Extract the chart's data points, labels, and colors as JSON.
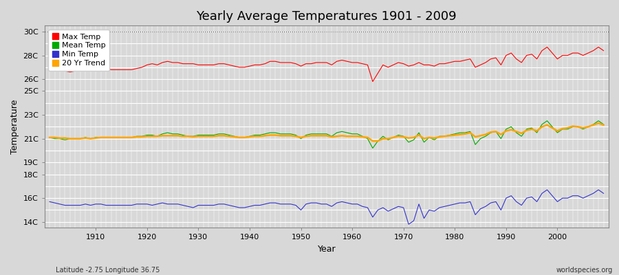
{
  "title": "Yearly Average Temperatures 1901 - 2009",
  "xlabel": "Year",
  "ylabel": "Temperature",
  "bottom_left": "Latitude -2.75 Longitude 36.75",
  "bottom_right": "worldspecies.org",
  "years": [
    1901,
    1902,
    1903,
    1904,
    1905,
    1906,
    1907,
    1908,
    1909,
    1910,
    1911,
    1912,
    1913,
    1914,
    1915,
    1916,
    1917,
    1918,
    1919,
    1920,
    1921,
    1922,
    1923,
    1924,
    1925,
    1926,
    1927,
    1928,
    1929,
    1930,
    1931,
    1932,
    1933,
    1934,
    1935,
    1936,
    1937,
    1938,
    1939,
    1940,
    1941,
    1942,
    1943,
    1944,
    1945,
    1946,
    1947,
    1948,
    1949,
    1950,
    1951,
    1952,
    1953,
    1954,
    1955,
    1956,
    1957,
    1958,
    1959,
    1960,
    1961,
    1962,
    1963,
    1964,
    1965,
    1966,
    1967,
    1968,
    1969,
    1970,
    1971,
    1972,
    1973,
    1974,
    1975,
    1976,
    1977,
    1978,
    1979,
    1980,
    1981,
    1982,
    1983,
    1984,
    1985,
    1986,
    1987,
    1988,
    1989,
    1990,
    1991,
    1992,
    1993,
    1994,
    1995,
    1996,
    1997,
    1998,
    1999,
    2000,
    2001,
    2002,
    2003,
    2004,
    2005,
    2006,
    2007,
    2008,
    2009
  ],
  "max_temp": [
    26.9,
    26.8,
    26.7,
    26.7,
    26.6,
    26.7,
    26.7,
    26.7,
    26.7,
    26.8,
    26.9,
    26.9,
    26.8,
    26.8,
    26.8,
    26.8,
    26.8,
    26.9,
    27.0,
    27.2,
    27.3,
    27.2,
    27.4,
    27.5,
    27.4,
    27.4,
    27.3,
    27.3,
    27.3,
    27.2,
    27.2,
    27.2,
    27.2,
    27.3,
    27.3,
    27.2,
    27.1,
    27.0,
    27.0,
    27.1,
    27.2,
    27.2,
    27.3,
    27.5,
    27.5,
    27.4,
    27.4,
    27.4,
    27.3,
    27.1,
    27.3,
    27.3,
    27.4,
    27.4,
    27.4,
    27.2,
    27.5,
    27.6,
    27.5,
    27.4,
    27.4,
    27.3,
    27.2,
    25.8,
    26.5,
    27.2,
    27.0,
    27.2,
    27.4,
    27.3,
    27.1,
    27.2,
    27.4,
    27.2,
    27.2,
    27.1,
    27.3,
    27.3,
    27.4,
    27.5,
    27.5,
    27.6,
    27.7,
    27.0,
    27.2,
    27.4,
    27.7,
    27.8,
    27.2,
    28.0,
    28.2,
    27.7,
    27.4,
    28.0,
    28.1,
    27.7,
    28.4,
    28.7,
    28.2,
    27.7,
    28.0,
    28.0,
    28.2,
    28.2,
    28.0,
    28.2,
    28.4,
    28.7,
    28.4
  ],
  "mean_temp": [
    21.1,
    21.0,
    21.0,
    20.9,
    21.0,
    21.0,
    21.0,
    21.1,
    21.0,
    21.1,
    21.1,
    21.1,
    21.1,
    21.1,
    21.1,
    21.1,
    21.1,
    21.2,
    21.2,
    21.3,
    21.3,
    21.2,
    21.4,
    21.5,
    21.4,
    21.4,
    21.3,
    21.2,
    21.2,
    21.3,
    21.3,
    21.3,
    21.3,
    21.4,
    21.4,
    21.3,
    21.2,
    21.1,
    21.1,
    21.2,
    21.3,
    21.3,
    21.4,
    21.5,
    21.5,
    21.4,
    21.4,
    21.4,
    21.3,
    21.0,
    21.3,
    21.4,
    21.4,
    21.4,
    21.4,
    21.2,
    21.5,
    21.6,
    21.5,
    21.4,
    21.4,
    21.2,
    21.0,
    20.2,
    20.8,
    21.2,
    20.9,
    21.1,
    21.3,
    21.2,
    20.7,
    20.9,
    21.5,
    20.7,
    21.1,
    20.9,
    21.2,
    21.2,
    21.3,
    21.4,
    21.5,
    21.5,
    21.6,
    20.5,
    21.0,
    21.2,
    21.5,
    21.6,
    21.0,
    21.8,
    22.0,
    21.5,
    21.2,
    21.8,
    21.9,
    21.5,
    22.2,
    22.5,
    22.0,
    21.5,
    21.8,
    21.8,
    22.0,
    22.0,
    21.8,
    22.0,
    22.2,
    22.5,
    22.2
  ],
  "min_temp": [
    15.7,
    15.6,
    15.5,
    15.4,
    15.4,
    15.4,
    15.4,
    15.5,
    15.4,
    15.5,
    15.5,
    15.4,
    15.4,
    15.4,
    15.4,
    15.4,
    15.4,
    15.5,
    15.5,
    15.5,
    15.4,
    15.5,
    15.6,
    15.5,
    15.5,
    15.5,
    15.4,
    15.3,
    15.2,
    15.4,
    15.4,
    15.4,
    15.4,
    15.5,
    15.5,
    15.4,
    15.3,
    15.2,
    15.2,
    15.3,
    15.4,
    15.4,
    15.5,
    15.6,
    15.6,
    15.5,
    15.5,
    15.5,
    15.4,
    15.0,
    15.5,
    15.6,
    15.6,
    15.5,
    15.5,
    15.3,
    15.6,
    15.7,
    15.6,
    15.5,
    15.5,
    15.3,
    15.2,
    14.4,
    15.0,
    15.2,
    14.9,
    15.1,
    15.3,
    15.2,
    13.8,
    14.1,
    15.5,
    14.3,
    15.0,
    14.9,
    15.2,
    15.3,
    15.4,
    15.5,
    15.6,
    15.6,
    15.7,
    14.6,
    15.1,
    15.3,
    15.6,
    15.7,
    15.0,
    16.0,
    16.2,
    15.7,
    15.4,
    16.0,
    16.1,
    15.7,
    16.4,
    16.7,
    16.2,
    15.7,
    16.0,
    16.0,
    16.2,
    16.2,
    16.0,
    16.2,
    16.4,
    16.7,
    16.4
  ],
  "trend_20yr": [
    21.1,
    21.1,
    21.05,
    21.05,
    21.0,
    21.0,
    21.0,
    21.05,
    21.0,
    21.05,
    21.1,
    21.1,
    21.1,
    21.1,
    21.1,
    21.1,
    21.1,
    21.15,
    21.15,
    21.2,
    21.2,
    21.2,
    21.25,
    21.25,
    21.25,
    21.25,
    21.2,
    21.2,
    21.15,
    21.2,
    21.2,
    21.2,
    21.2,
    21.25,
    21.25,
    21.2,
    21.15,
    21.1,
    21.1,
    21.15,
    21.2,
    21.2,
    21.25,
    21.3,
    21.3,
    21.25,
    21.25,
    21.25,
    21.2,
    21.1,
    21.2,
    21.25,
    21.25,
    21.25,
    21.25,
    21.15,
    21.2,
    21.25,
    21.2,
    21.2,
    21.2,
    21.15,
    21.1,
    20.8,
    20.8,
    21.0,
    21.0,
    21.1,
    21.2,
    21.15,
    21.05,
    21.1,
    21.3,
    21.0,
    21.1,
    21.05,
    21.15,
    21.2,
    21.25,
    21.3,
    21.35,
    21.4,
    21.5,
    21.15,
    21.25,
    21.35,
    21.55,
    21.6,
    21.35,
    21.65,
    21.75,
    21.6,
    21.45,
    21.7,
    21.8,
    21.65,
    22.0,
    22.15,
    21.9,
    21.65,
    21.85,
    21.9,
    22.05,
    22.0,
    21.9,
    22.0,
    22.15,
    22.3,
    22.15
  ],
  "bg_color": "#d8d8d8",
  "plot_bg_color": "#d8d8d8",
  "max_color": "#ff0000",
  "mean_color": "#00aa00",
  "min_color": "#3333cc",
  "trend_color": "#ffa500",
  "grid_major_color": "#ffffff",
  "grid_minor_color": "#cccccc",
  "ytick_labels": [
    "14C",
    "16C",
    "18C",
    "19C",
    "21C",
    "23C",
    "25C",
    "26C",
    "28C",
    "30C"
  ],
  "ytick_values": [
    14,
    16,
    18,
    19,
    21,
    23,
    25,
    26,
    28,
    30
  ],
  "ytick_all_values": [
    14,
    15,
    16,
    17,
    18,
    19,
    20,
    21,
    22,
    23,
    24,
    25,
    26,
    27,
    28,
    29,
    30
  ],
  "ylim": [
    13.5,
    30.5
  ],
  "xlim": [
    1900,
    2010
  ],
  "xtick_values": [
    1910,
    1920,
    1930,
    1940,
    1950,
    1960,
    1970,
    1980,
    1990,
    2000
  ],
  "dotted_line_y": 30,
  "title_fontsize": 13,
  "axis_label_fontsize": 9,
  "tick_fontsize": 8,
  "legend_fontsize": 8
}
